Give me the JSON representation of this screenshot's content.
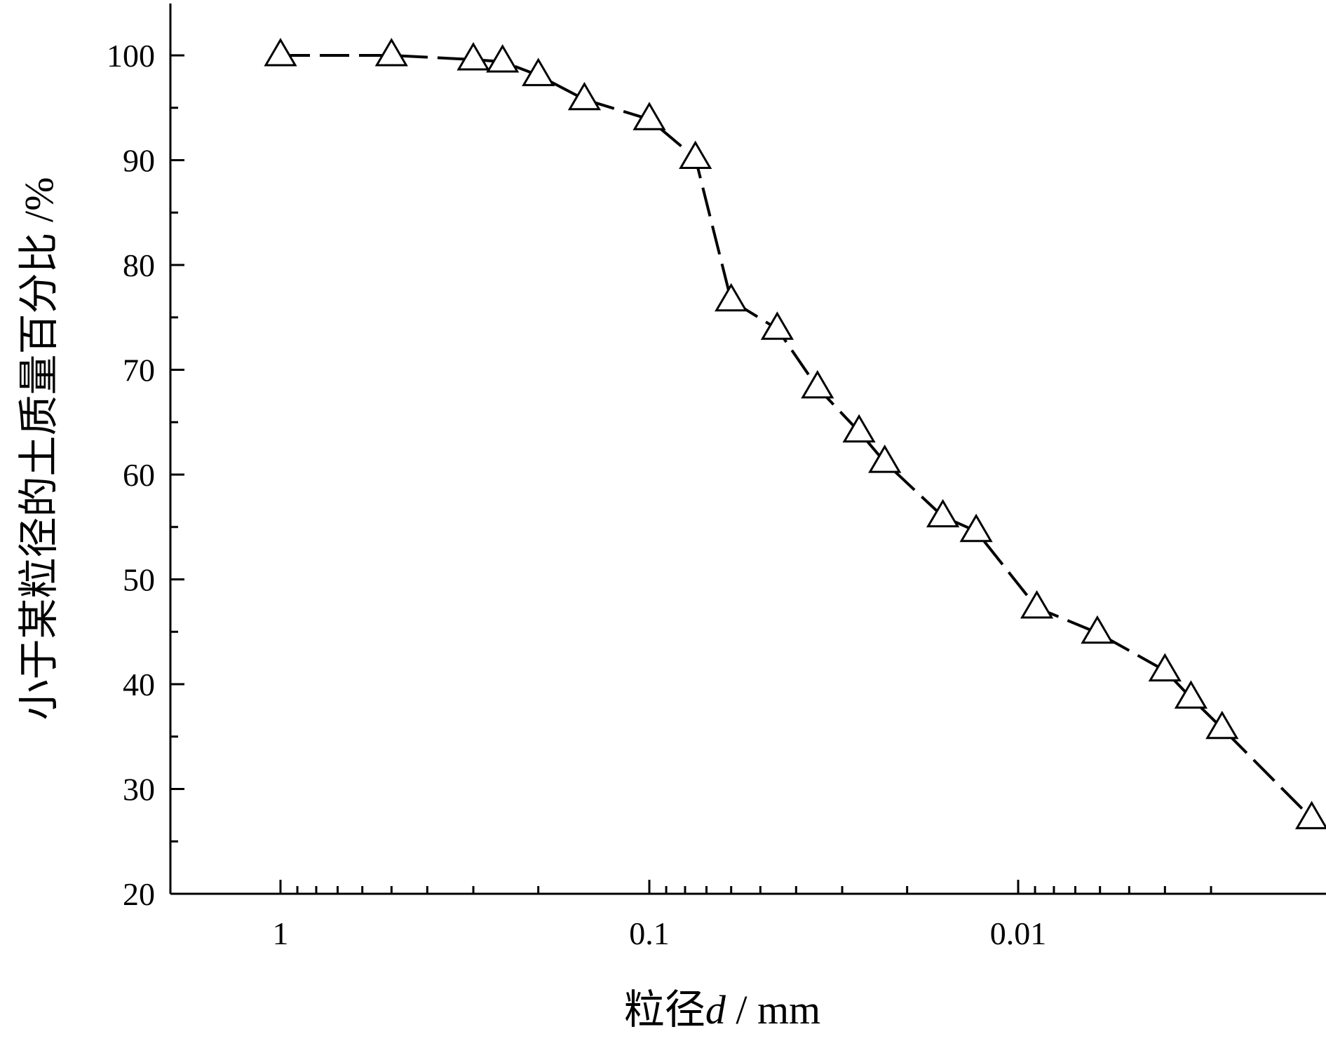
{
  "chart_data": {
    "type": "line",
    "xlabel_prefix": "粒径",
    "xlabel_var": "d",
    "xlabel_unit": " / mm",
    "ylabel": "小于某粒径的土质量百分比 /%",
    "x_scale": "log-reversed",
    "xlim": [
      1.5,
      0.0025
    ],
    "ylim": [
      20,
      105
    ],
    "x_ticks": [
      {
        "value": 1,
        "label": "1"
      },
      {
        "value": 0.1,
        "label": "0.1"
      },
      {
        "value": 0.01,
        "label": "0.01"
      }
    ],
    "y_ticks": [
      {
        "value": 20,
        "label": "20"
      },
      {
        "value": 30,
        "label": "30"
      },
      {
        "value": 40,
        "label": "40"
      },
      {
        "value": 50,
        "label": "50"
      },
      {
        "value": 60,
        "label": "60"
      },
      {
        "value": 70,
        "label": "70"
      },
      {
        "value": 80,
        "label": "80"
      },
      {
        "value": 90,
        "label": "90"
      },
      {
        "value": 100,
        "label": "100"
      }
    ],
    "marker": "open-triangle",
    "grid": false,
    "series": [
      {
        "x": [
          1.0,
          0.5,
          0.3,
          0.25,
          0.2,
          0.15,
          0.1,
          0.075,
          0.06,
          0.045,
          0.035,
          0.027,
          0.023,
          0.016,
          0.013,
          0.0089,
          0.0061,
          0.004,
          0.0034,
          0.0028,
          0.0016
        ],
        "y": [
          100,
          100,
          99.6,
          99.4,
          98.1,
          95.8,
          93.9,
          90.2,
          76.6,
          73.9,
          68.3,
          64.1,
          61.2,
          56.0,
          54.6,
          47.3,
          44.9,
          41.3,
          38.7,
          35.8,
          27.2
        ]
      }
    ]
  }
}
